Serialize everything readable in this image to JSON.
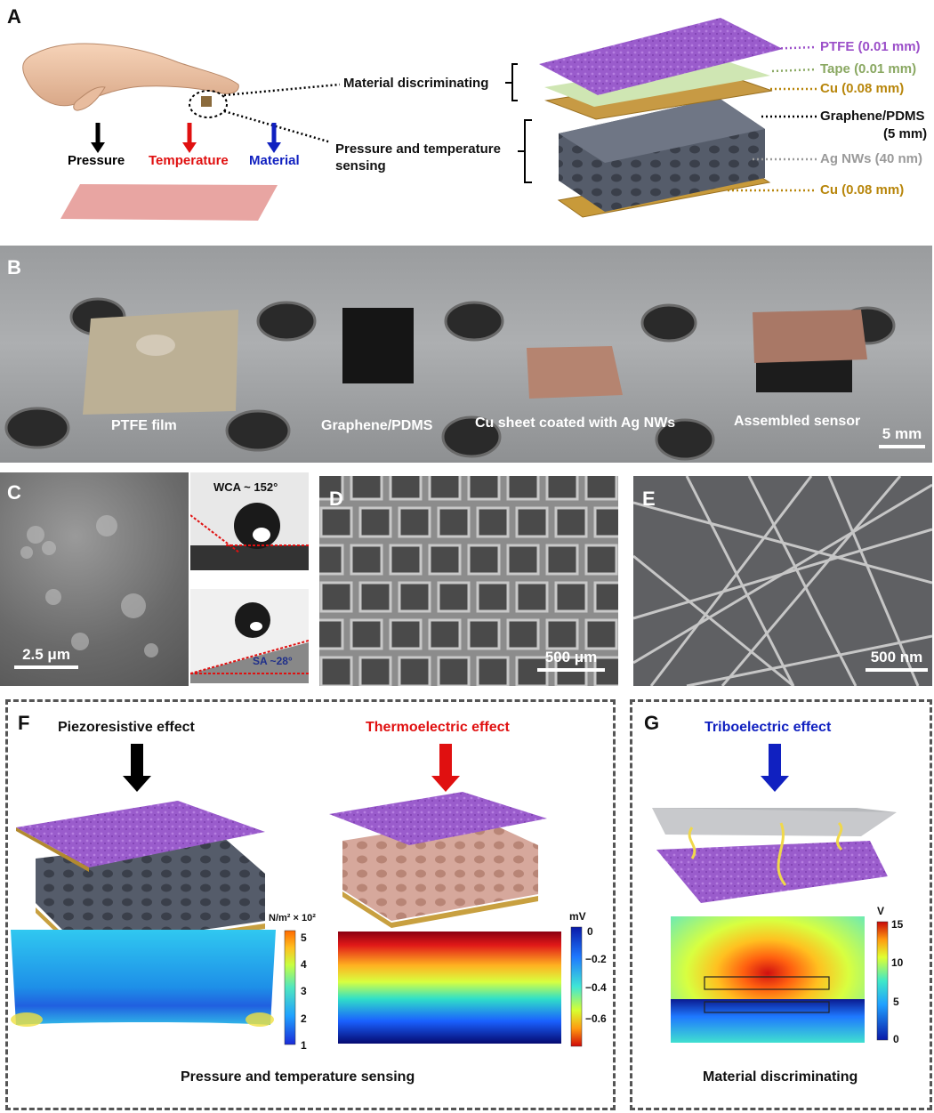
{
  "panels": {
    "a": "A",
    "b": "B",
    "c": "C",
    "d": "D",
    "e": "E",
    "f": "F",
    "g": "G"
  },
  "panelA": {
    "inputs": [
      "Pressure",
      "Temperature",
      "Material"
    ],
    "input_colors": [
      "#000000",
      "#e01010",
      "#1020c0"
    ],
    "material_discriminating": "Material discriminating",
    "pressure_temp_sensing_line1": "Pressure and temperature",
    "pressure_temp_sensing_line2": "sensing",
    "layers": [
      {
        "text": "PTFE (0.01 mm)",
        "color": "#9b4fc9"
      },
      {
        "text": "Tape (0.01 mm)",
        "color": "#8aa862"
      },
      {
        "text": "Cu (0.08 mm)",
        "color": "#b8860b"
      },
      {
        "text": "Graphene/PDMS",
        "color": "#111111"
      },
      {
        "text": "(5 mm)",
        "color": "#111111"
      },
      {
        "text": "Ag NWs (40 nm)",
        "color": "#9a9a9a"
      },
      {
        "text": "Cu (0.08 mm)",
        "color": "#b8860b"
      }
    ]
  },
  "panelB": {
    "labels": [
      "PTFE film",
      "Graphene/PDMS",
      "Cu sheet  coated with Ag NWs",
      "Assembled sensor"
    ],
    "scale": "5 mm"
  },
  "panelC": {
    "scale": "2.5 μm",
    "wca": "WCA ~ 152°",
    "sa": "SA ~28°"
  },
  "panelD": {
    "scale": "500 μm"
  },
  "panelE": {
    "scale": "500 nm"
  },
  "panelF": {
    "piezo": "Piezoresistive effect",
    "thermo": "Thermoelectric effect",
    "unit_left": "N/m² × 10²",
    "ticks_left": [
      "5",
      "4",
      "3",
      "2",
      "1"
    ],
    "unit_right": "mV",
    "ticks_right": [
      "0",
      "−0.2",
      "−0.4",
      "−0.6"
    ],
    "caption": "Pressure and temperature sensing"
  },
  "panelG": {
    "tribo": "Triboelectric effect",
    "unit": "V",
    "ticks": [
      "15",
      "10",
      "5",
      "0"
    ],
    "caption": "Material discriminating"
  }
}
